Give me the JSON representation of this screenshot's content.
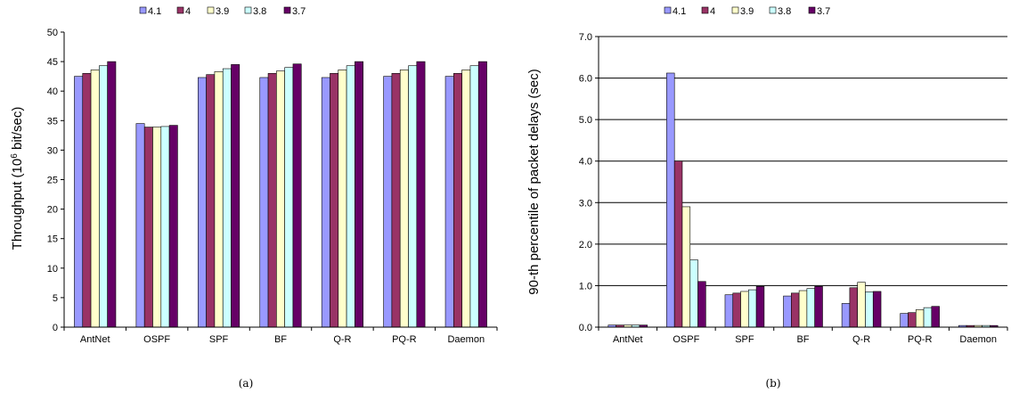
{
  "colors": [
    "#9999ff",
    "#993366",
    "#ffffcc",
    "#ccffff",
    "#660066"
  ],
  "chart_data": [
    {
      "type": "bar",
      "caption": "(a)",
      "ylabel": "Throughput (10",
      "ylabel_sup": "6",
      "ylabel_tail": " bit/sec)",
      "categories": [
        "AntNet",
        "OSPF",
        "SPF",
        "BF",
        "Q-R",
        "PQ-R",
        "Daemon"
      ],
      "ylim": [
        0,
        50
      ],
      "yticks": [
        0,
        5,
        10,
        15,
        20,
        25,
        30,
        35,
        40,
        45,
        50
      ],
      "ytick_labels": [
        "0",
        "5",
        "10",
        "15",
        "20",
        "25",
        "30",
        "35",
        "40",
        "45",
        "50"
      ],
      "grid": false,
      "legend_position": "top",
      "series": [
        {
          "name": "4.1",
          "values": [
            42.5,
            34.5,
            42.3,
            42.3,
            42.3,
            42.5,
            42.5
          ]
        },
        {
          "name": "4",
          "values": [
            43.0,
            33.9,
            42.8,
            43.0,
            43.0,
            43.0,
            43.0
          ]
        },
        {
          "name": "3.9",
          "values": [
            43.6,
            33.9,
            43.3,
            43.4,
            43.6,
            43.6,
            43.6
          ]
        },
        {
          "name": "3.8",
          "values": [
            44.3,
            34.0,
            43.8,
            44.0,
            44.3,
            44.3,
            44.3
          ]
        },
        {
          "name": "3.7",
          "values": [
            45.0,
            34.2,
            44.5,
            44.6,
            45.0,
            45.0,
            45.0
          ]
        }
      ]
    },
    {
      "type": "bar",
      "caption": "(b)",
      "ylabel": "90-th percentile of packet delays (sec)",
      "categories": [
        "AntNet",
        "OSPF",
        "SPF",
        "BF",
        "Q-R",
        "PQ-R",
        "Daemon"
      ],
      "ylim": [
        0,
        7
      ],
      "yticks": [
        0,
        1,
        2,
        3,
        4,
        5,
        6,
        7
      ],
      "ytick_labels": [
        "0.0",
        "1.0",
        "2.0",
        "3.0",
        "4.0",
        "5.0",
        "6.0",
        "7.0"
      ],
      "grid": true,
      "legend_position": "top",
      "series": [
        {
          "name": "4.1",
          "values": [
            0.05,
            6.12,
            0.78,
            0.75,
            0.57,
            0.33,
            0.04
          ]
        },
        {
          "name": "4",
          "values": [
            0.05,
            4.0,
            0.82,
            0.82,
            0.95,
            0.35,
            0.04
          ]
        },
        {
          "name": "3.9",
          "values": [
            0.05,
            2.9,
            0.86,
            0.88,
            1.08,
            0.42,
            0.04
          ]
        },
        {
          "name": "3.8",
          "values": [
            0.05,
            1.62,
            0.9,
            0.93,
            0.85,
            0.47,
            0.04
          ]
        },
        {
          "name": "3.7",
          "values": [
            0.05,
            1.1,
            0.98,
            0.98,
            0.86,
            0.5,
            0.04
          ]
        }
      ]
    }
  ]
}
